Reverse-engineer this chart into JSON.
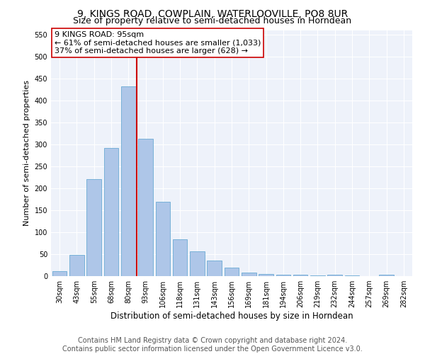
{
  "title": "9, KINGS ROAD, COWPLAIN, WATERLOOVILLE, PO8 8UR",
  "subtitle": "Size of property relative to semi-detached houses in Horndean",
  "xlabel": "Distribution of semi-detached houses by size in Horndean",
  "ylabel": "Number of semi-detached properties",
  "categories": [
    "30sqm",
    "43sqm",
    "55sqm",
    "68sqm",
    "80sqm",
    "93sqm",
    "106sqm",
    "118sqm",
    "131sqm",
    "143sqm",
    "156sqm",
    "169sqm",
    "181sqm",
    "194sqm",
    "206sqm",
    "219sqm",
    "232sqm",
    "244sqm",
    "257sqm",
    "269sqm",
    "282sqm"
  ],
  "values": [
    12,
    48,
    220,
    292,
    432,
    312,
    170,
    83,
    57,
    35,
    20,
    8,
    5,
    3,
    4,
    1,
    3,
    1,
    0,
    4,
    0
  ],
  "bar_color": "#aec6e8",
  "bar_edge_color": "#6aaad4",
  "property_line_color": "#cc0000",
  "annotation_line1": "9 KINGS ROAD: 95sqm",
  "annotation_line2": "← 61% of semi-detached houses are smaller (1,033)",
  "annotation_line3": "37% of semi-detached houses are larger (628) →",
  "annotation_box_color": "#ffffff",
  "annotation_box_edge": "#cc0000",
  "ylim": [
    0,
    560
  ],
  "yticks": [
    0,
    50,
    100,
    150,
    200,
    250,
    300,
    350,
    400,
    450,
    500,
    550
  ],
  "bg_color": "#eef2fa",
  "footer": "Contains HM Land Registry data © Crown copyright and database right 2024.\nContains public sector information licensed under the Open Government Licence v3.0.",
  "title_fontsize": 10,
  "subtitle_fontsize": 9,
  "annotation_fontsize": 8,
  "tick_fontsize": 7,
  "ylabel_fontsize": 8,
  "xlabel_fontsize": 8.5,
  "footer_fontsize": 7
}
